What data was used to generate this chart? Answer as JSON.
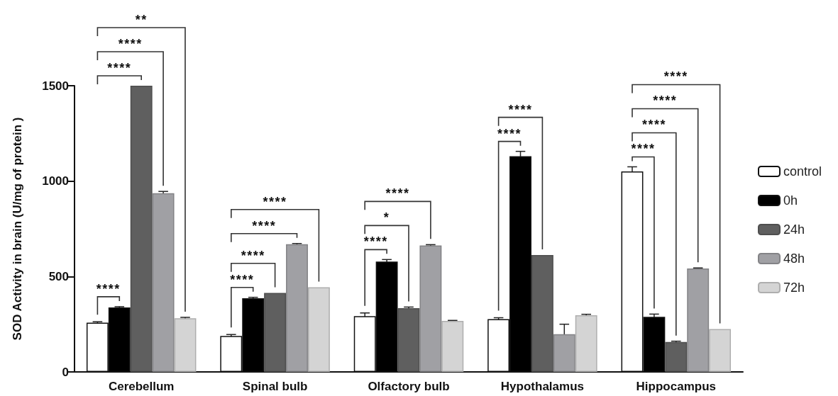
{
  "chart_data": {
    "type": "bar",
    "ylabel": "SOD Activity in brain (U/mg of protein )",
    "categories": [
      "Cerebellum",
      "Spinal bulb",
      "Olfactory bulb",
      "Hypothalamus",
      "Hippocampus"
    ],
    "series": [
      {
        "name": "control",
        "color": "#ffffff",
        "values": [
          258,
          188,
          292,
          277,
          1051
        ],
        "errors": [
          5,
          8,
          17,
          7,
          24
        ]
      },
      {
        "name": "0h",
        "color": "#000000",
        "values": [
          338,
          386,
          578,
          1131,
          289
        ],
        "errors": [
          4,
          5,
          11,
          25,
          14
        ]
      },
      {
        "name": "24h",
        "color": "#5f5f5f",
        "values": [
          1500,
          414,
          334,
          613,
          157
        ],
        "errors": [
          null,
          null,
          6,
          null,
          4
        ]
      },
      {
        "name": "48h",
        "color": "#a0a0a4",
        "values": [
          937,
          669,
          663,
          198,
          542
        ],
        "errors": [
          9,
          4,
          4,
          52,
          3
        ]
      },
      {
        "name": "72h",
        "color": "#d4d4d4",
        "values": [
          281,
          444,
          267,
          297,
          225
        ],
        "errors": [
          5,
          null,
          3,
          5,
          null
        ]
      }
    ],
    "ylim": [
      0,
      1500
    ],
    "yticks": [
      0,
      500,
      1000,
      1500
    ],
    "grid": false,
    "legend": "right",
    "annotations": [
      "****",
      "****",
      "****",
      "**",
      "****",
      "****",
      "****",
      "****",
      "****",
      "*",
      "****",
      "****",
      "****",
      "****",
      "****",
      "****",
      "****"
    ]
  }
}
